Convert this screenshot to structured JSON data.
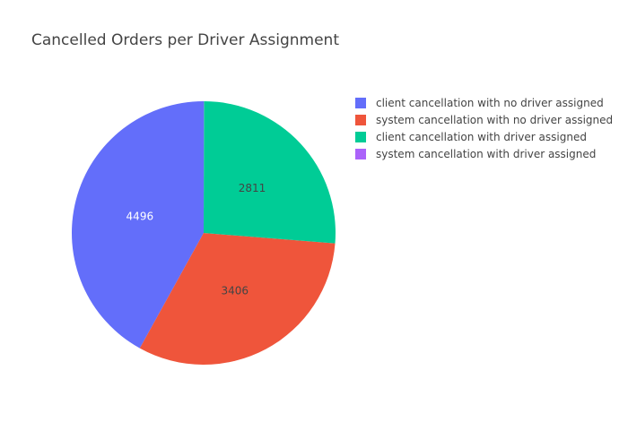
{
  "chart_data": {
    "type": "pie",
    "title": "Cancelled Orders per Driver Assignment",
    "legend_position": "top-right",
    "slices": [
      {
        "label": "client cancellation with no driver assigned",
        "value": 4496,
        "color": "#636efa",
        "text_color": "#ffffff"
      },
      {
        "label": "system cancellation with no driver assigned",
        "value": 3406,
        "color": "#ef553b",
        "text_color": "#444444"
      },
      {
        "label": "client cancellation with driver assigned",
        "value": 2811,
        "color": "#00cc96",
        "text_color": "#444444"
      },
      {
        "label": "system cancellation with driver assigned",
        "value": 3,
        "color": "#ab63fa",
        "text_color": "#444444"
      }
    ]
  }
}
